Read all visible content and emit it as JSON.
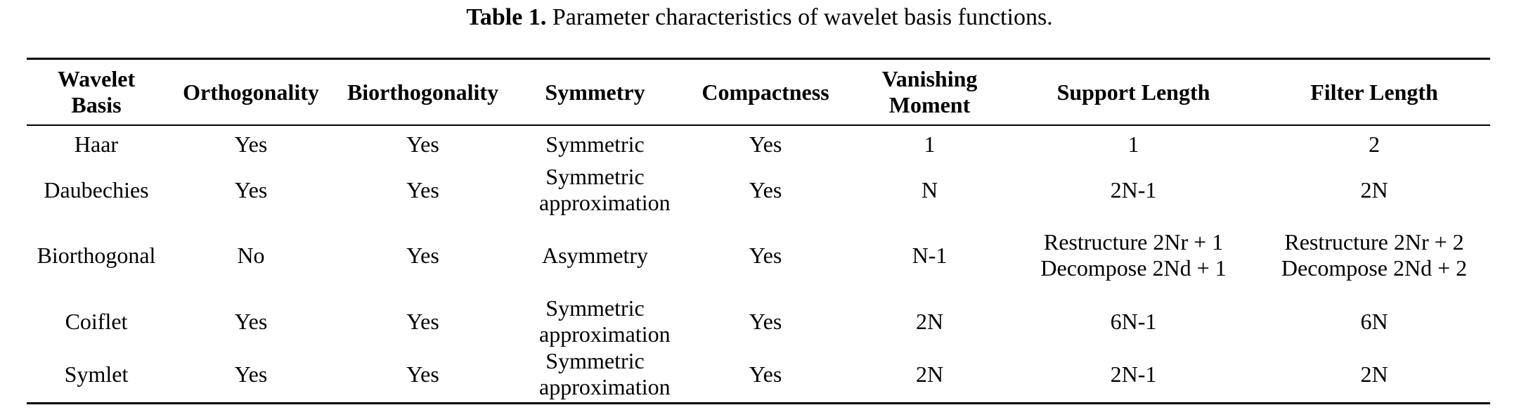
{
  "caption": {
    "label": "Table 1.",
    "text": "Parameter characteristics of wavelet basis functions."
  },
  "table": {
    "headers": [
      "Wavelet Basis",
      "Orthogonality",
      "Biorthogonality",
      "Symmetry",
      "Compactness",
      "Vanishing Moment",
      "Support Length",
      "Filter Length"
    ],
    "rows": [
      [
        "Haar",
        "Yes",
        "Yes",
        "Symmetric",
        "Yes",
        "1",
        "1",
        "2"
      ],
      [
        "Daubechies",
        "Yes",
        "Yes",
        "Symmetric approximation",
        "Yes",
        "N",
        "2N-1",
        "2N"
      ],
      [
        "Biorthogonal",
        "No",
        "Yes",
        "Asymmetry",
        "Yes",
        "N-1",
        "Restructure 2Nr + 1 Decompose 2Nd + 1",
        "Restructure 2Nr + 2 Decompose 2Nd + 2"
      ],
      [
        "Coiflet",
        "Yes",
        "Yes",
        "Symmetric approximation",
        "Yes",
        "2N",
        "6N-1",
        "6N"
      ],
      [
        "Symlet",
        "Yes",
        "Yes",
        "Symmetric approximation",
        "Yes",
        "2N",
        "2N-1",
        "2N"
      ]
    ]
  }
}
